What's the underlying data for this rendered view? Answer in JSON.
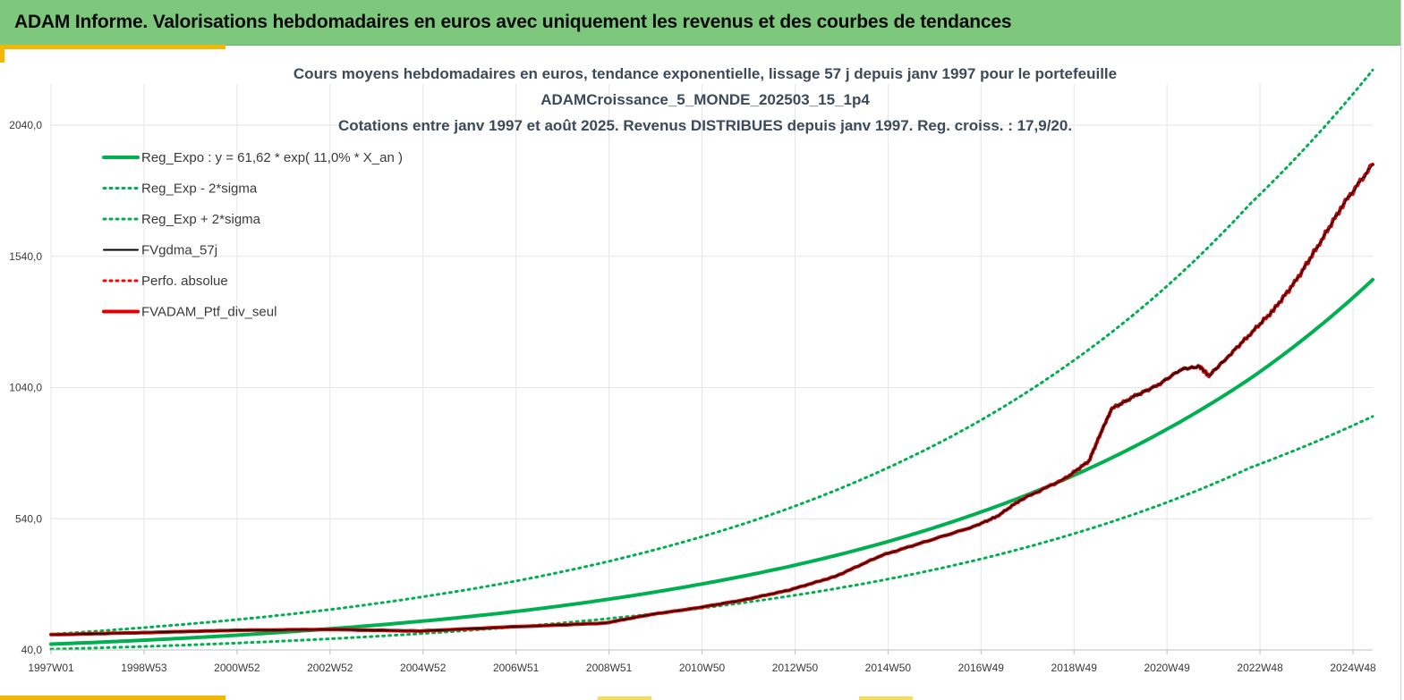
{
  "header": {
    "title": "ADAM Informe. Valorisations hebdomadaires en euros avec uniquement les revenus et des courbes de tendances"
  },
  "colors": {
    "banner": "#7dc87d",
    "accent": "#f2b705",
    "trend": "#00b050",
    "band": "#00b050",
    "mma": "#000000",
    "perf": "#ff0000",
    "portfolio": "#e00000",
    "grid": "#e6e6e6"
  },
  "chart_data": {
    "type": "line",
    "title_lines": [
      "Cours moyens hebdomadaires  en euros, tendance exponentielle, lissage 57 j depuis janv 1997 pour le portefeuille",
      "ADAMCroissance_5_MONDE_202503_15_1p4",
      "Cotations  entre janv 1997 et août 2025. Revenus DISTRIBUES depuis janv 1997. Reg. croiss. : 17,9/20."
    ],
    "xlabel": "",
    "ylabel": "",
    "x_ticks": [
      "1997W01",
      "1998W53",
      "2000W52",
      "2002W52",
      "2004W52",
      "2006W51",
      "2008W51",
      "2010W50",
      "2012W50",
      "2014W50",
      "2016W49",
      "2018W49",
      "2020W49",
      "2022W48",
      "2024W48"
    ],
    "y_ticks": [
      "40,0",
      "540,0",
      "1040,0",
      "1540,0",
      "2040,0"
    ],
    "ylim": [
      40,
      2040
    ],
    "x_range_years": [
      1997.0,
      2025.65
    ],
    "grid": true,
    "legend_position": "top-left",
    "series": [
      {
        "name": "Reg_Expo : y = 61,62 * exp( 11,0% *  X_an )",
        "style": "solid-thick",
        "color": "#00b050",
        "x": [
          1997,
          1999,
          2001,
          2003,
          2005,
          2007,
          2009,
          2011,
          2013,
          2015,
          2017,
          2019,
          2021,
          2023,
          2025.65
        ],
        "values": [
          62,
          77,
          96,
          120,
          149,
          185,
          231,
          288,
          358,
          446,
          556,
          692,
          863,
          1075,
          1451
        ]
      },
      {
        "name": "Reg_Exp - 2*sigma",
        "style": "dotted",
        "color": "#00b050",
        "x": [
          1997,
          1999,
          2001,
          2003,
          2005,
          2007,
          2009,
          2011,
          2013,
          2015,
          2017,
          2019,
          2021,
          2023,
          2025.65
        ],
        "values": [
          43,
          53,
          66,
          82,
          102,
          127,
          158,
          197,
          245,
          305,
          380,
          474,
          590,
          735,
          930
        ]
      },
      {
        "name": "Reg_Exp + 2*sigma",
        "style": "dotted",
        "color": "#00b050",
        "x": [
          1997,
          1999,
          2001,
          2003,
          2005,
          2007,
          2009,
          2011,
          2013,
          2015,
          2017,
          2019,
          2021,
          2023,
          2025.65
        ],
        "values": [
          100,
          125,
          155,
          193,
          241,
          300,
          374,
          466,
          580,
          723,
          900,
          1122,
          1397,
          1741,
          2250
        ]
      },
      {
        "name": "FVgdma_57j",
        "style": "solid",
        "color": "#000000",
        "x": [
          1997,
          1999,
          2001,
          2003,
          2005,
          2007,
          2009,
          2010,
          2011,
          2012,
          2013,
          2014,
          2015,
          2016,
          2017,
          2017.5,
          2018,
          2019,
          2019.5,
          2019.8,
          2020,
          2020.5,
          2021,
          2021.5,
          2021.9,
          2022.1,
          2022.5,
          2023,
          2023.5,
          2024,
          2024.5,
          2025,
          2025.65
        ],
        "values": [
          98,
          106,
          115,
          118,
          112,
          128,
          142,
          175,
          200,
          230,
          268,
          320,
          400,
          455,
          510,
          548,
          610,
          695,
          760,
          885,
          960,
          1008,
          1050,
          1110,
          1120,
          1085,
          1155,
          1245,
          1335,
          1450,
          1590,
          1735,
          1890
        ]
      },
      {
        "name": "Perfo. absolue",
        "style": "dotted",
        "color": "#ff0000",
        "x": [
          1997,
          1999,
          2001,
          2003,
          2005,
          2007,
          2009,
          2010,
          2011,
          2012,
          2013,
          2014,
          2015,
          2016,
          2017,
          2017.5,
          2018,
          2019,
          2019.5,
          2019.8,
          2020,
          2020.5,
          2021,
          2021.5,
          2021.9,
          2022.1,
          2022.5,
          2023,
          2023.5,
          2024,
          2024.5,
          2025,
          2025.65
        ],
        "values": [
          98,
          106,
          115,
          118,
          112,
          128,
          142,
          175,
          200,
          230,
          268,
          320,
          400,
          455,
          510,
          548,
          610,
          695,
          760,
          885,
          960,
          1008,
          1050,
          1110,
          1120,
          1085,
          1155,
          1245,
          1335,
          1450,
          1590,
          1735,
          1890
        ]
      },
      {
        "name": "FVADAM_Ptf_div_seul",
        "style": "solid-thick",
        "color": "#e00000",
        "x": [
          1997,
          1999,
          2001,
          2003,
          2005,
          2007,
          2009,
          2010,
          2011,
          2012,
          2013,
          2014,
          2015,
          2016,
          2017,
          2017.5,
          2018,
          2019,
          2019.5,
          2019.8,
          2020,
          2020.5,
          2021,
          2021.5,
          2021.9,
          2022.1,
          2022.5,
          2023,
          2023.5,
          2024,
          2024.5,
          2025,
          2025.65
        ],
        "values": [
          98,
          106,
          115,
          118,
          112,
          128,
          142,
          175,
          200,
          230,
          268,
          320,
          400,
          455,
          510,
          548,
          610,
          695,
          760,
          885,
          960,
          1008,
          1050,
          1110,
          1120,
          1085,
          1155,
          1245,
          1335,
          1450,
          1590,
          1735,
          1890
        ]
      }
    ]
  }
}
